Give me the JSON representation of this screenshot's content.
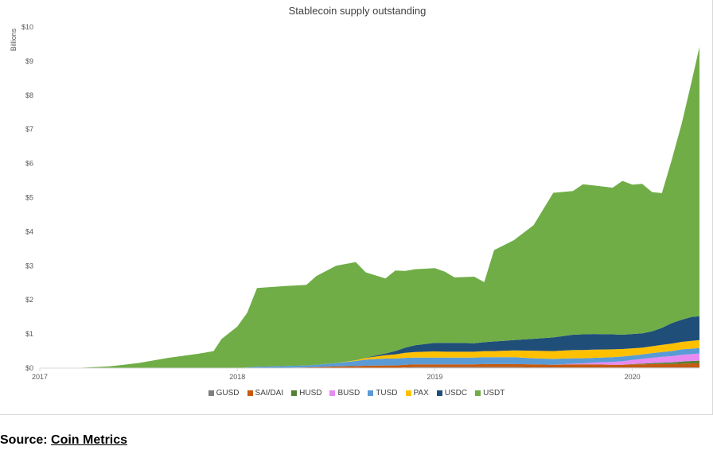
{
  "source": {
    "label": "Source:",
    "link_text": "Coin Metrics"
  },
  "chart_data": {
    "type": "area",
    "title": "Stablecoin supply outstanding",
    "ylabel": "Billions",
    "ylim": [
      0,
      10
    ],
    "y_ticks": [
      "$0",
      "$1",
      "$2",
      "$3",
      "$4",
      "$5",
      "$6",
      "$7",
      "$8",
      "$9",
      "$10"
    ],
    "x_ticks": [
      "2017",
      "2018",
      "2019",
      "2020"
    ],
    "x_tick_values": [
      2017.0,
      2018.0,
      2019.0,
      2020.0
    ],
    "xlim": [
      2017.0,
      2020.34
    ],
    "grid": false,
    "legend_position": "bottom",
    "stacked": true,
    "x": [
      2017.0,
      2017.2,
      2017.35,
      2017.5,
      2017.65,
      2017.8,
      2017.88,
      2017.92,
      2018.0,
      2018.05,
      2018.1,
      2018.25,
      2018.35,
      2018.4,
      2018.5,
      2018.6,
      2018.65,
      2018.75,
      2018.8,
      2018.85,
      2018.9,
      2019.0,
      2019.05,
      2019.1,
      2019.2,
      2019.25,
      2019.3,
      2019.4,
      2019.5,
      2019.6,
      2019.7,
      2019.75,
      2019.8,
      2019.9,
      2019.95,
      2020.0,
      2020.05,
      2020.1,
      2020.15,
      2020.2,
      2020.25,
      2020.3,
      2020.34
    ],
    "series": [
      {
        "name": "GUSD",
        "color": "#7f7f7f",
        "values": [
          0,
          0,
          0,
          0,
          0,
          0,
          0,
          0,
          0,
          0,
          0,
          0,
          0,
          0,
          0,
          0,
          0,
          0,
          0,
          0.02,
          0.03,
          0.03,
          0.03,
          0.03,
          0.03,
          0.03,
          0.03,
          0.03,
          0.02,
          0.02,
          0.02,
          0.02,
          0.02,
          0.02,
          0.02,
          0.02,
          0.02,
          0.02,
          0.02,
          0.02,
          0.02,
          0.02,
          0.02
        ]
      },
      {
        "name": "SAI/DAI",
        "color": "#c55a11",
        "values": [
          0,
          0,
          0,
          0,
          0,
          0,
          0,
          0,
          0,
          0,
          0,
          0.01,
          0.02,
          0.03,
          0.05,
          0.06,
          0.07,
          0.08,
          0.08,
          0.08,
          0.08,
          0.08,
          0.08,
          0.08,
          0.08,
          0.09,
          0.09,
          0.09,
          0.09,
          0.08,
          0.09,
          0.09,
          0.09,
          0.08,
          0.08,
          0.09,
          0.09,
          0.1,
          0.1,
          0.1,
          0.11,
          0.12,
          0.12
        ]
      },
      {
        "name": "HUSD",
        "color": "#548235",
        "values": [
          0,
          0,
          0,
          0,
          0,
          0,
          0,
          0,
          0,
          0,
          0,
          0,
          0,
          0,
          0,
          0,
          0,
          0,
          0,
          0,
          0,
          0,
          0,
          0,
          0,
          0,
          0,
          0,
          0,
          0,
          0,
          0,
          0,
          0,
          0,
          0.01,
          0.02,
          0.03,
          0.04,
          0.05,
          0.06,
          0.07,
          0.08
        ]
      },
      {
        "name": "BUSD",
        "color": "#e78bf2",
        "values": [
          0,
          0,
          0,
          0,
          0,
          0,
          0,
          0,
          0,
          0,
          0,
          0,
          0,
          0,
          0,
          0,
          0,
          0,
          0,
          0,
          0,
          0,
          0,
          0,
          0,
          0,
          0,
          0,
          0,
          0,
          0.02,
          0.03,
          0.05,
          0.08,
          0.1,
          0.12,
          0.14,
          0.15,
          0.17,
          0.18,
          0.2,
          0.2,
          0.21
        ]
      },
      {
        "name": "TUSD",
        "color": "#5b9bd5",
        "values": [
          0,
          0,
          0,
          0,
          0,
          0,
          0,
          0,
          0,
          0.02,
          0.04,
          0.05,
          0.06,
          0.07,
          0.1,
          0.15,
          0.18,
          0.2,
          0.2,
          0.2,
          0.2,
          0.2,
          0.2,
          0.2,
          0.2,
          0.2,
          0.2,
          0.2,
          0.18,
          0.17,
          0.16,
          0.15,
          0.14,
          0.14,
          0.14,
          0.13,
          0.13,
          0.14,
          0.14,
          0.15,
          0.16,
          0.16,
          0.16
        ]
      },
      {
        "name": "PAX",
        "color": "#ffc000",
        "values": [
          0,
          0,
          0,
          0,
          0,
          0,
          0,
          0,
          0,
          0,
          0,
          0,
          0,
          0,
          0,
          0.02,
          0.05,
          0.1,
          0.12,
          0.15,
          0.16,
          0.18,
          0.17,
          0.17,
          0.17,
          0.18,
          0.18,
          0.2,
          0.22,
          0.23,
          0.24,
          0.24,
          0.24,
          0.23,
          0.22,
          0.21,
          0.2,
          0.2,
          0.21,
          0.22,
          0.22,
          0.23,
          0.23
        ]
      },
      {
        "name": "USDC",
        "color": "#1f4e79",
        "values": [
          0,
          0,
          0,
          0,
          0,
          0,
          0,
          0,
          0,
          0,
          0,
          0,
          0,
          0,
          0,
          0,
          0.01,
          0.05,
          0.1,
          0.15,
          0.2,
          0.25,
          0.26,
          0.26,
          0.25,
          0.26,
          0.28,
          0.3,
          0.35,
          0.4,
          0.45,
          0.46,
          0.46,
          0.44,
          0.42,
          0.42,
          0.42,
          0.44,
          0.5,
          0.6,
          0.65,
          0.7,
          0.7
        ]
      },
      {
        "name": "USDT",
        "color": "#70ad47",
        "values": [
          0,
          0.01,
          0.05,
          0.15,
          0.3,
          0.42,
          0.5,
          0.85,
          1.22,
          1.6,
          2.31,
          2.35,
          2.36,
          2.6,
          2.85,
          2.88,
          2.5,
          2.2,
          2.36,
          2.25,
          2.23,
          2.19,
          2.09,
          1.92,
          1.95,
          1.76,
          2.68,
          2.93,
          3.33,
          4.24,
          4.21,
          4.4,
          4.36,
          4.3,
          4.51,
          4.38,
          4.38,
          4.08,
          3.95,
          4.8,
          5.75,
          6.9,
          7.9
        ]
      }
    ]
  }
}
